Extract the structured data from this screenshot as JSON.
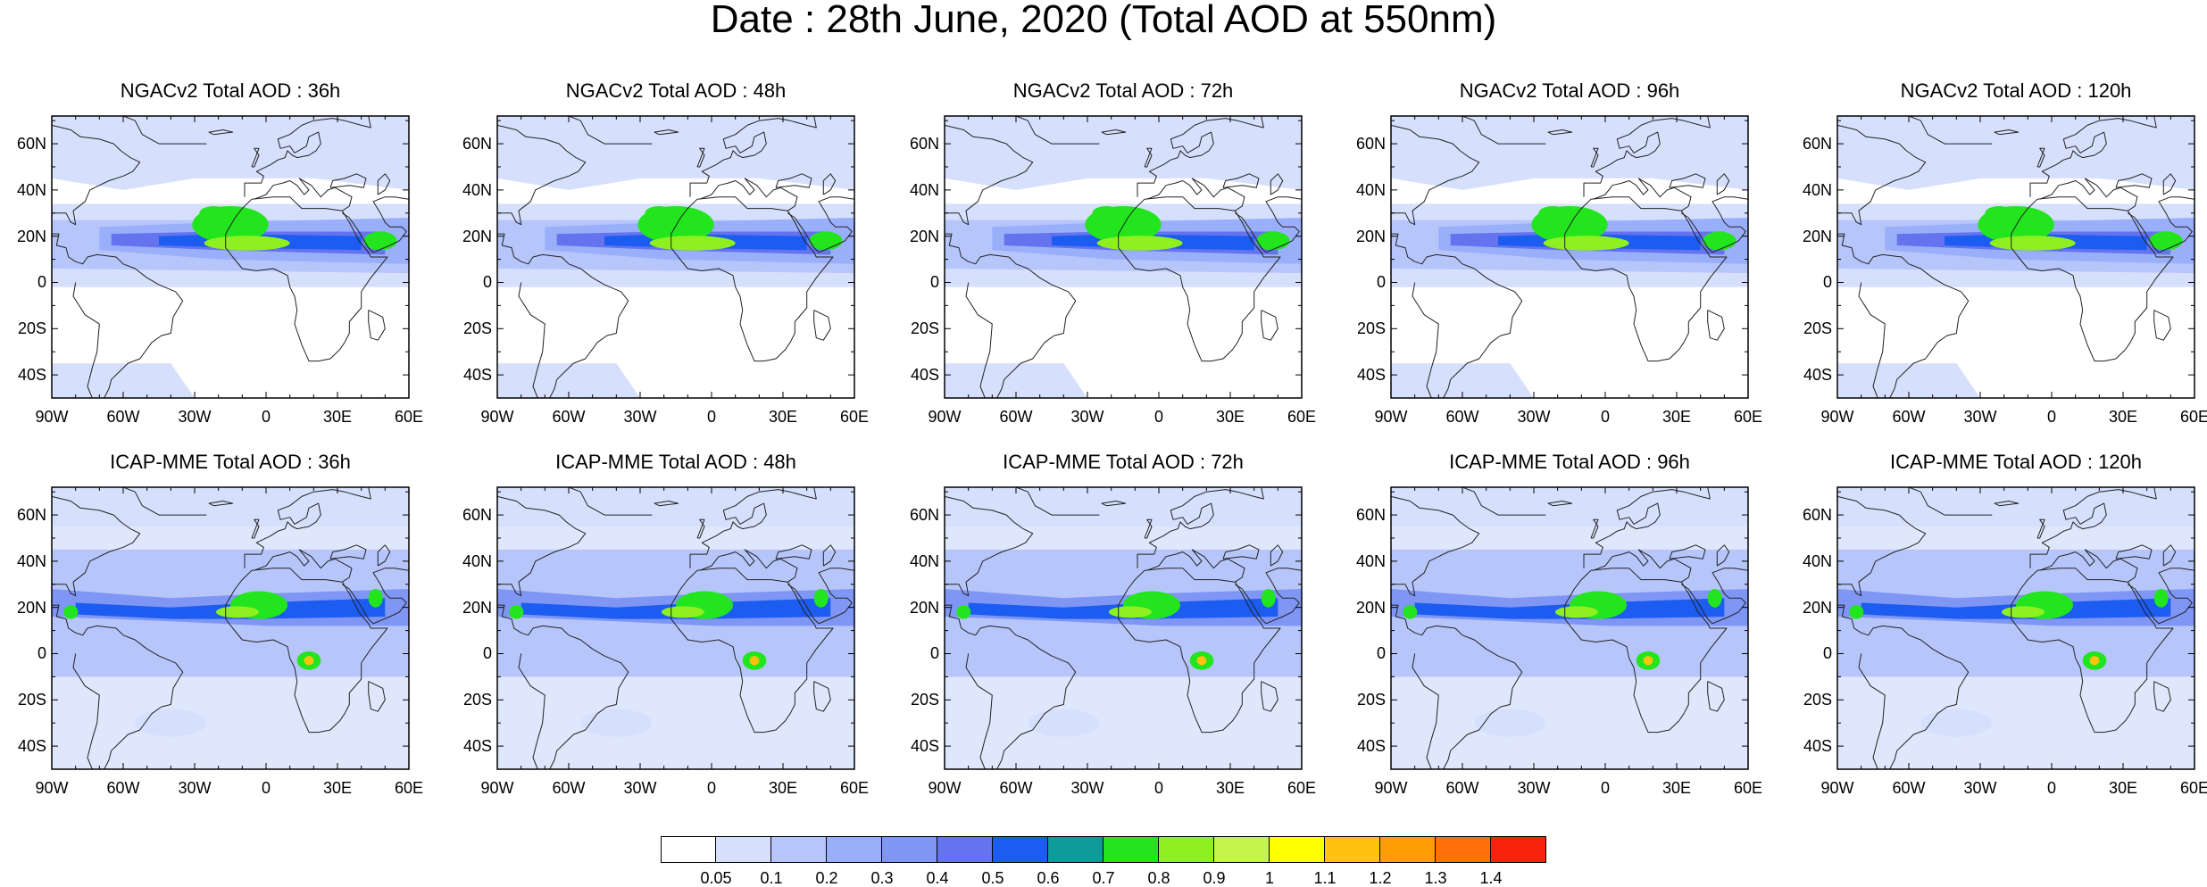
{
  "title": "Date : 28th June, 2020 (Total AOD at 550nm)",
  "lat_labels": [
    "60N",
    "40N",
    "20N",
    "0",
    "20S",
    "40S"
  ],
  "lat_values": [
    60,
    40,
    20,
    0,
    -20,
    -40
  ],
  "lon_labels": [
    "90W",
    "60W",
    "30W",
    "0",
    "30E",
    "60E"
  ],
  "lon_values": [
    -90,
    -60,
    -30,
    0,
    30,
    60
  ],
  "domain": {
    "lon_range": [
      -90,
      60
    ],
    "lat_range": [
      -50,
      72
    ]
  },
  "panels": [
    {
      "title": "NGACv2 Total AOD : 36h",
      "model": "NGACv2",
      "lead": "36h"
    },
    {
      "title": "NGACv2 Total AOD : 48h",
      "model": "NGACv2",
      "lead": "48h"
    },
    {
      "title": "NGACv2 Total AOD : 72h",
      "model": "NGACv2",
      "lead": "72h"
    },
    {
      "title": "NGACv2 Total AOD : 96h",
      "model": "NGACv2",
      "lead": "96h"
    },
    {
      "title": "NGACv2 Total AOD : 120h",
      "model": "NGACv2",
      "lead": "120h"
    },
    {
      "title": "ICAP-MME Total AOD : 36h",
      "model": "ICAP-MME",
      "lead": "36h"
    },
    {
      "title": "ICAP-MME Total AOD : 48h",
      "model": "ICAP-MME",
      "lead": "48h"
    },
    {
      "title": "ICAP-MME Total AOD : 72h",
      "model": "ICAP-MME",
      "lead": "72h"
    },
    {
      "title": "ICAP-MME Total AOD : 96h",
      "model": "ICAP-MME",
      "lead": "96h"
    },
    {
      "title": "ICAP-MME Total AOD : 120h",
      "model": "ICAP-MME",
      "lead": "120h"
    }
  ],
  "colorbar": {
    "labels": [
      "0.05",
      "0.1",
      "0.2",
      "0.3",
      "0.4",
      "0.5",
      "0.6",
      "0.7",
      "0.8",
      "0.9",
      "1",
      "1.1",
      "1.2",
      "1.3",
      "1.4"
    ],
    "colors": [
      "#ffffff",
      "#d6e0fd",
      "#b6c6fb",
      "#9aaff9",
      "#7f96f5",
      "#6574ee",
      "#1c5cf0",
      "#109b9b",
      "#22e51e",
      "#8ff020",
      "#c4f54a",
      "#ffff00",
      "#ffc20e",
      "#ff9d05",
      "#ff7108",
      "#f8210c"
    ]
  }
}
